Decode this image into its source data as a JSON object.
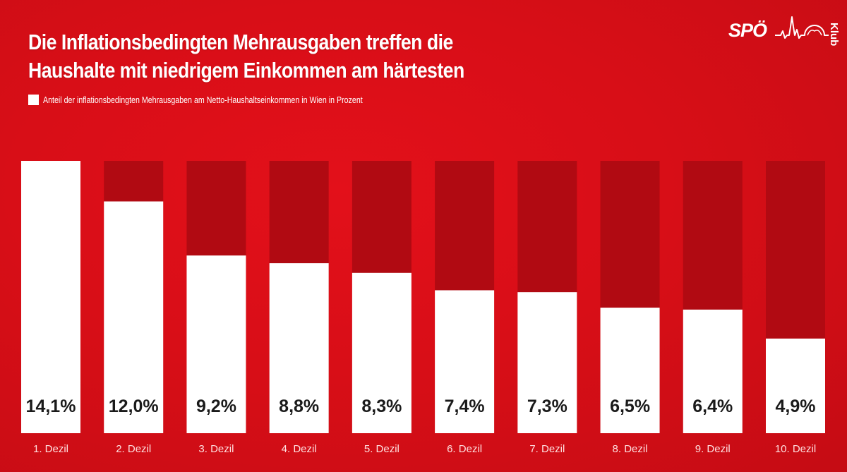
{
  "header": {
    "title_line1": "Die Inflationsbedingten Mehrausgaben treffen die",
    "title_line2": "Haushalte mit niedrigem Einkommen am härtesten"
  },
  "logo": {
    "brand": "SPÖ",
    "sub": "Klub",
    "icon": "skyline-heartbeat-icon"
  },
  "colors": {
    "background": "#d80e17",
    "bar_track": "#b10a12",
    "bar_fill": "#ffffff",
    "value_text": "#1a1a1a",
    "category_text": "#ffe0e0"
  },
  "chart_data": {
    "type": "bar",
    "title": "Die Inflationsbedingten Mehrausgaben treffen die Haushalte mit niedrigem Einkommen am härtesten",
    "legend": [
      {
        "label": "Anteil der inflationsbedingten Mehrausgaben am Netto-Haushaltseinkommen in Wien in Prozent",
        "color": "#ffffff"
      }
    ],
    "legend_position": "top-left",
    "categories": [
      "1. Dezil",
      "2. Dezil",
      "3. Dezil",
      "4. Dezil",
      "5. Dezil",
      "6. Dezil",
      "7. Dezil",
      "8. Dezil",
      "9. Dezil",
      "10. Dezil"
    ],
    "values": [
      14.1,
      12.0,
      9.2,
      8.8,
      8.3,
      7.4,
      7.3,
      6.5,
      6.4,
      4.9
    ],
    "value_labels": [
      "14,1%",
      "12,0%",
      "9,2%",
      "8,8%",
      "8,3%",
      "7,4%",
      "7,3%",
      "6,5%",
      "6,4%",
      "4,9%"
    ],
    "xlabel": "",
    "ylabel": "",
    "ylim": [
      0,
      14.1
    ],
    "grid": false
  }
}
